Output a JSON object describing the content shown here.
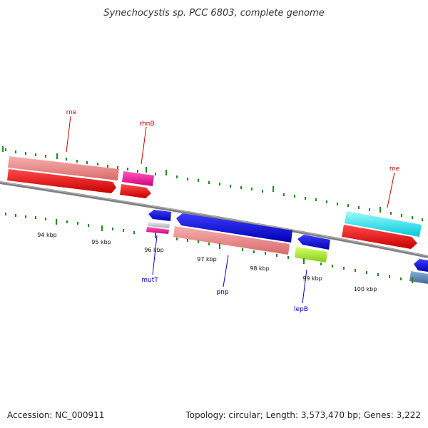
{
  "title": "Synechocystis sp. PCC 6803, complete genome",
  "footer": {
    "accession": "Accession: NC_000911",
    "topology": "Topology: circular; Length: 3,573,470 bp; Genes: 3,222"
  },
  "colors": {
    "backbone": "#7f7f7f",
    "tick": "#1f8a1f",
    "forward_label": "#cc0000",
    "reverse_label": "#0000cc"
  },
  "ruler": {
    "unit": "kbp",
    "labels": [
      "94 kbp",
      "95 kbp",
      "96 kbp",
      "97 kbp",
      "98 kbp",
      "99 kbp",
      "100 kbp"
    ]
  },
  "genes": {
    "rne": "rne",
    "rhnB": "rhnB",
    "me": "me",
    "mutT": "mutT",
    "pnp": "pnp",
    "lepB": "lepB"
  }
}
